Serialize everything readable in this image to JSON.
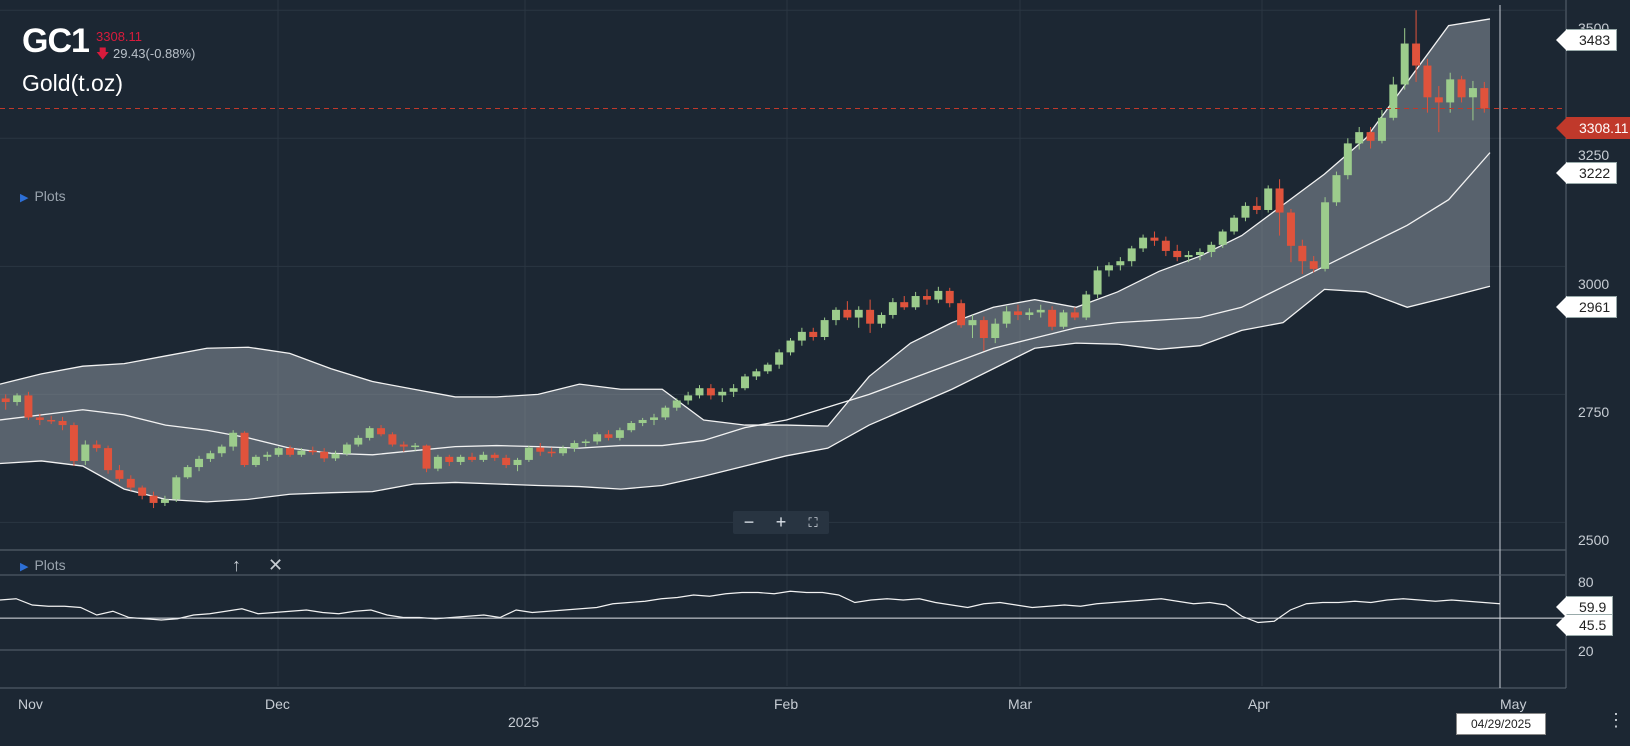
{
  "header": {
    "symbol": "GC1",
    "price": "3308.11",
    "change": "29.43(-0.88%)",
    "change_arrow": "arrow-down-icon",
    "name": "Gold(t.oz)"
  },
  "plots_label_main": "Plots",
  "plots_label_sub": "Plots",
  "controls": {
    "zoom_out": "−",
    "zoom_in": "+",
    "fullscreen": "⛶",
    "move_up": "↑",
    "close": "✕",
    "menu": "⋮"
  },
  "y_axis_labels": [
    "3500",
    "3250",
    "3000",
    "2750",
    "2500"
  ],
  "sub_axis_labels": [
    "80",
    "20"
  ],
  "price_tags": {
    "upper_band": "3483",
    "last_price": "3308.11",
    "middle_band": "3222",
    "lower_band": "2961",
    "indicator_a": "59.9",
    "indicator_b": "45.5"
  },
  "x_axis_labels": [
    "Nov",
    "Dec",
    "2025",
    "Feb",
    "Mar",
    "Apr",
    "May"
  ],
  "cursor_date": "04/29/2025",
  "colors": {
    "up": "#9ccc8c",
    "down": "#e0533c",
    "band_fill": "#8a949c",
    "background": "#1c2733",
    "last_price": "#c0392b"
  },
  "chart_data": {
    "type": "candlestick",
    "ylim": [
      2450,
      3520
    ],
    "candles": [
      [
        2742,
        2750,
        2720,
        2735
      ],
      [
        2735,
        2752,
        2728,
        2748
      ],
      [
        2748,
        2755,
        2700,
        2705
      ],
      [
        2705,
        2712,
        2690,
        2700
      ],
      [
        2700,
        2708,
        2692,
        2698
      ],
      [
        2698,
        2706,
        2680,
        2690
      ],
      [
        2690,
        2695,
        2610,
        2620
      ],
      [
        2620,
        2660,
        2612,
        2652
      ],
      [
        2652,
        2660,
        2638,
        2645
      ],
      [
        2645,
        2650,
        2595,
        2602
      ],
      [
        2602,
        2612,
        2580,
        2585
      ],
      [
        2585,
        2592,
        2562,
        2568
      ],
      [
        2568,
        2572,
        2545,
        2552
      ],
      [
        2552,
        2560,
        2528,
        2538
      ],
      [
        2538,
        2552,
        2532,
        2545
      ],
      [
        2545,
        2592,
        2540,
        2588
      ],
      [
        2588,
        2612,
        2585,
        2608
      ],
      [
        2608,
        2630,
        2600,
        2624
      ],
      [
        2624,
        2640,
        2618,
        2635
      ],
      [
        2635,
        2652,
        2628,
        2648
      ],
      [
        2648,
        2680,
        2640,
        2675
      ],
      [
        2675,
        2678,
        2608,
        2612
      ],
      [
        2612,
        2632,
        2608,
        2628
      ],
      [
        2628,
        2638,
        2620,
        2632
      ],
      [
        2632,
        2648,
        2628,
        2645
      ],
      [
        2645,
        2650,
        2628,
        2632
      ],
      [
        2632,
        2645,
        2628,
        2640
      ],
      [
        2640,
        2648,
        2632,
        2638
      ],
      [
        2638,
        2645,
        2618,
        2625
      ],
      [
        2625,
        2640,
        2620,
        2634
      ],
      [
        2634,
        2656,
        2630,
        2652
      ],
      [
        2652,
        2670,
        2648,
        2665
      ],
      [
        2665,
        2688,
        2660,
        2684
      ],
      [
        2684,
        2690,
        2668,
        2672
      ],
      [
        2672,
        2676,
        2648,
        2652
      ],
      [
        2652,
        2658,
        2638,
        2648
      ],
      [
        2648,
        2655,
        2640,
        2650
      ],
      [
        2650,
        2652,
        2598,
        2605
      ],
      [
        2605,
        2632,
        2600,
        2628
      ],
      [
        2628,
        2632,
        2610,
        2618
      ],
      [
        2618,
        2632,
        2612,
        2628
      ],
      [
        2628,
        2636,
        2618,
        2622
      ],
      [
        2622,
        2638,
        2618,
        2632
      ],
      [
        2632,
        2636,
        2620,
        2626
      ],
      [
        2626,
        2632,
        2606,
        2612
      ],
      [
        2612,
        2626,
        2600,
        2622
      ],
      [
        2622,
        2650,
        2618,
        2646
      ],
      [
        2646,
        2655,
        2630,
        2638
      ],
      [
        2638,
        2646,
        2628,
        2635
      ],
      [
        2635,
        2650,
        2630,
        2645
      ],
      [
        2645,
        2660,
        2638,
        2655
      ],
      [
        2655,
        2662,
        2648,
        2658
      ],
      [
        2658,
        2676,
        2652,
        2672
      ],
      [
        2672,
        2680,
        2660,
        2665
      ],
      [
        2665,
        2685,
        2660,
        2680
      ],
      [
        2680,
        2698,
        2676,
        2694
      ],
      [
        2694,
        2704,
        2688,
        2700
      ],
      [
        2700,
        2712,
        2690,
        2705
      ],
      [
        2705,
        2728,
        2700,
        2724
      ],
      [
        2724,
        2742,
        2718,
        2738
      ],
      [
        2738,
        2755,
        2730,
        2748
      ],
      [
        2748,
        2768,
        2742,
        2762
      ],
      [
        2762,
        2770,
        2740,
        2748
      ],
      [
        2748,
        2762,
        2735,
        2755
      ],
      [
        2755,
        2770,
        2745,
        2762
      ],
      [
        2762,
        2790,
        2758,
        2785
      ],
      [
        2785,
        2800,
        2778,
        2795
      ],
      [
        2795,
        2812,
        2790,
        2808
      ],
      [
        2808,
        2838,
        2800,
        2832
      ],
      [
        2832,
        2860,
        2826,
        2855
      ],
      [
        2855,
        2880,
        2845,
        2872
      ],
      [
        2872,
        2880,
        2855,
        2862
      ],
      [
        2862,
        2900,
        2856,
        2895
      ],
      [
        2895,
        2920,
        2885,
        2915
      ],
      [
        2915,
        2932,
        2895,
        2900
      ],
      [
        2900,
        2922,
        2880,
        2915
      ],
      [
        2915,
        2935,
        2870,
        2888
      ],
      [
        2888,
        2910,
        2880,
        2905
      ],
      [
        2905,
        2938,
        2898,
        2930
      ],
      [
        2930,
        2942,
        2915,
        2920
      ],
      [
        2920,
        2950,
        2915,
        2942
      ],
      [
        2942,
        2955,
        2925,
        2935
      ],
      [
        2935,
        2960,
        2928,
        2952
      ],
      [
        2952,
        2958,
        2920,
        2928
      ],
      [
        2928,
        2935,
        2880,
        2885
      ],
      [
        2885,
        2905,
        2860,
        2895
      ],
      [
        2895,
        2902,
        2835,
        2860
      ],
      [
        2860,
        2898,
        2850,
        2888
      ],
      [
        2888,
        2922,
        2880,
        2912
      ],
      [
        2912,
        2925,
        2895,
        2905
      ],
      [
        2905,
        2918,
        2895,
        2910
      ],
      [
        2910,
        2925,
        2900,
        2915
      ],
      [
        2915,
        2922,
        2875,
        2882
      ],
      [
        2882,
        2915,
        2878,
        2910
      ],
      [
        2910,
        2920,
        2895,
        2900
      ],
      [
        2900,
        2952,
        2895,
        2945
      ],
      [
        2945,
        3000,
        2938,
        2992
      ],
      [
        2992,
        3008,
        2980,
        3002
      ],
      [
        3002,
        3018,
        2992,
        3010
      ],
      [
        3010,
        3040,
        3000,
        3035
      ],
      [
        3035,
        3062,
        3028,
        3056
      ],
      [
        3056,
        3068,
        3040,
        3050
      ],
      [
        3050,
        3058,
        3020,
        3030
      ],
      [
        3030,
        3042,
        3010,
        3018
      ],
      [
        3018,
        3030,
        3008,
        3022
      ],
      [
        3022,
        3035,
        3012,
        3028
      ],
      [
        3028,
        3048,
        3018,
        3042
      ],
      [
        3042,
        3072,
        3036,
        3068
      ],
      [
        3068,
        3100,
        3062,
        3095
      ],
      [
        3095,
        3125,
        3088,
        3118
      ],
      [
        3118,
        3135,
        3102,
        3110
      ],
      [
        3110,
        3158,
        3105,
        3152
      ],
      [
        3152,
        3170,
        3060,
        3105
      ],
      [
        3105,
        3112,
        3008,
        3040
      ],
      [
        3040,
        3052,
        2985,
        3010
      ],
      [
        3010,
        3020,
        2988,
        2995
      ],
      [
        2995,
        3135,
        2990,
        3125
      ],
      [
        3125,
        3185,
        3118,
        3178
      ],
      [
        3178,
        3250,
        3170,
        3240
      ],
      [
        3240,
        3272,
        3228,
        3262
      ],
      [
        3262,
        3272,
        3230,
        3245
      ],
      [
        3245,
        3305,
        3240,
        3290
      ],
      [
        3290,
        3370,
        3285,
        3355
      ],
      [
        3355,
        3465,
        3345,
        3435
      ],
      [
        3435,
        3500,
        3360,
        3392
      ],
      [
        3392,
        3405,
        3300,
        3330
      ],
      [
        3330,
        3352,
        3262,
        3320
      ],
      [
        3320,
        3378,
        3300,
        3365
      ],
      [
        3365,
        3372,
        3320,
        3330
      ],
      [
        3330,
        3362,
        3285,
        3348
      ],
      [
        3348,
        3360,
        3300,
        3308
      ]
    ],
    "bollinger": {
      "upper": [
        2770,
        2790,
        2805,
        2810,
        2825,
        2840,
        2842,
        2830,
        2800,
        2775,
        2760,
        2745,
        2745,
        2750,
        2770,
        2760,
        2760,
        2700,
        2690,
        2690,
        2688,
        2785,
        2850,
        2890,
        2920,
        2935,
        2920,
        2950,
        2990,
        3020,
        3060,
        3120,
        3180,
        3250,
        3360,
        3470,
        3483
      ],
      "middle": [
        2700,
        2710,
        2720,
        2710,
        2690,
        2680,
        2665,
        2645,
        2635,
        2632,
        2640,
        2648,
        2650,
        2648,
        2645,
        2650,
        2650,
        2660,
        2685,
        2700,
        2725,
        2750,
        2780,
        2810,
        2840,
        2860,
        2880,
        2890,
        2895,
        2900,
        2920,
        2960,
        3000,
        3040,
        3080,
        3130,
        3222
      ],
      "lower": [
        2615,
        2620,
        2610,
        2565,
        2545,
        2540,
        2545,
        2555,
        2558,
        2560,
        2575,
        2578,
        2575,
        2572,
        2570,
        2565,
        2572,
        2590,
        2610,
        2630,
        2645,
        2690,
        2725,
        2760,
        2800,
        2840,
        2850,
        2848,
        2838,
        2845,
        2875,
        2890,
        2955,
        2950,
        2920,
        2940,
        2961
      ],
      "x_days": [
        0,
        7,
        14,
        21,
        28,
        35,
        42,
        49,
        56,
        63,
        70,
        77,
        84,
        91,
        98,
        105,
        112,
        119,
        126,
        133,
        140,
        147,
        154,
        161,
        168,
        175,
        182,
        189,
        196,
        203,
        210,
        217,
        224,
        231,
        238,
        245,
        252
      ]
    },
    "indicator": {
      "values": [
        60,
        61,
        56,
        55,
        55,
        54,
        48,
        51,
        46,
        45,
        44,
        45,
        48,
        49,
        51,
        53,
        49,
        50,
        51,
        52,
        50,
        49,
        51,
        52,
        48,
        46,
        46,
        45,
        46,
        47,
        48,
        46,
        52,
        50,
        51,
        52,
        53,
        54,
        57,
        58,
        59,
        61,
        62,
        64,
        63,
        65,
        66,
        66,
        65,
        67,
        66,
        66,
        64,
        58,
        60,
        61,
        60,
        61,
        58,
        56,
        54,
        57,
        58,
        56,
        54,
        55,
        56,
        55,
        57,
        58,
        59,
        60,
        61,
        59,
        57,
        58,
        56,
        47,
        42,
        43,
        52,
        57,
        58,
        58,
        59,
        58,
        60,
        61,
        60,
        59,
        60,
        59,
        58,
        57
      ],
      "levels": [
        80,
        20
      ],
      "tag_values": [
        59.9,
        45.5
      ]
    },
    "x_ticks": [
      "Nov",
      "Dec",
      "2025",
      "Feb",
      "Mar",
      "Apr",
      "May"
    ],
    "last_price": 3308.11
  }
}
